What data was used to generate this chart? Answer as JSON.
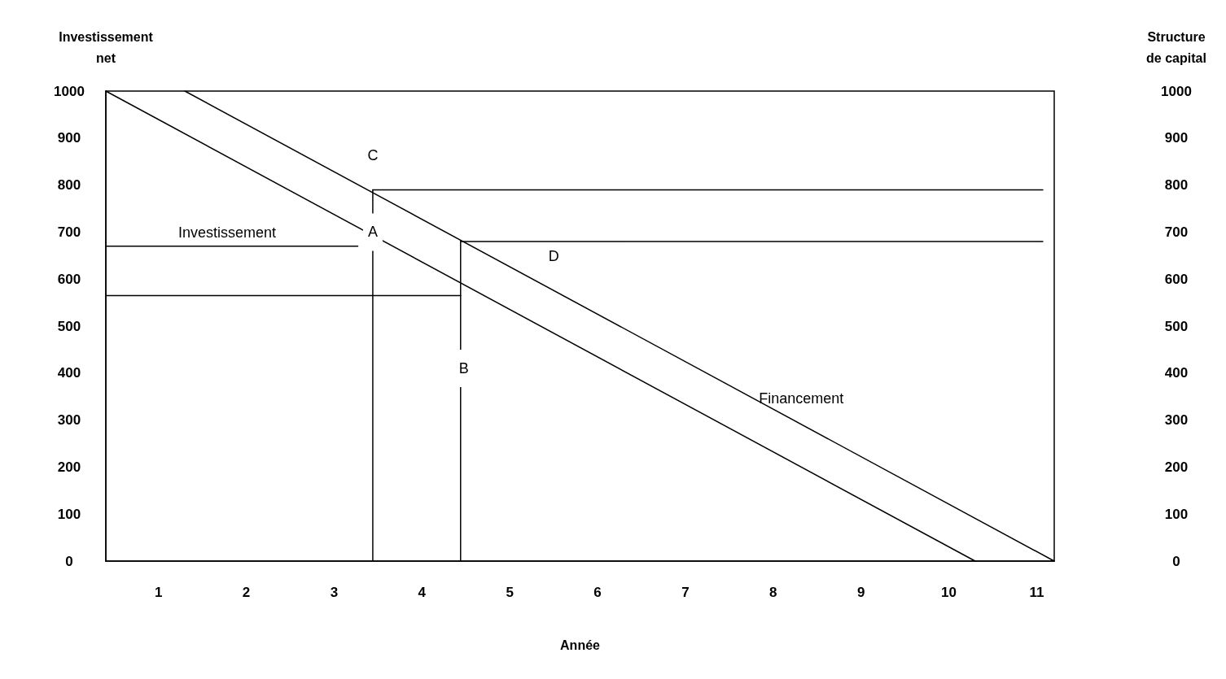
{
  "chart_data": {
    "type": "line",
    "xlabel": "Année",
    "ylabel": "Investissement net",
    "y2label": "Structure de capital",
    "xlim": [
      0.4,
      11.2
    ],
    "xticks": [
      1,
      2,
      3,
      4,
      5,
      6,
      7,
      8,
      9,
      10,
      11
    ],
    "ylim": [
      0,
      1000
    ],
    "yticks": [
      0,
      100,
      200,
      300,
      400,
      500,
      600,
      700,
      800,
      900,
      1000
    ],
    "y2lim": [
      0,
      1000
    ],
    "y2ticks": [
      0,
      100,
      200,
      300,
      400,
      500,
      600,
      700,
      800,
      900,
      1000
    ],
    "marker": "none",
    "line_style": "solid",
    "series": [
      {
        "name": "Investissement",
        "color": "#000000",
        "x": [
          0.4,
          10.3
        ],
        "values": [
          1000,
          0
        ]
      },
      {
        "name": "Financement",
        "color": "#000000",
        "x": [
          1.3,
          11.2
        ],
        "values": [
          1000,
          0
        ]
      },
      {
        "color": "#000000",
        "x": [
          0.4,
          3.27
        ],
        "values": [
          670,
          670
        ]
      },
      {
        "color": "#000000",
        "x": [
          0.4,
          4.44
        ],
        "values": [
          565,
          565
        ]
      },
      {
        "color": "#000000",
        "x": [
          3.44,
          11.07
        ],
        "values": [
          790,
          790
        ]
      },
      {
        "color": "#000000",
        "x": [
          4.44,
          11.07
        ],
        "values": [
          680,
          680
        ]
      },
      {
        "color": "#000000",
        "x": [
          3.44,
          3.44
        ],
        "values": [
          790,
          0
        ]
      },
      {
        "color": "#000000",
        "x": [
          4.44,
          4.44
        ],
        "values": [
          680,
          0
        ]
      }
    ],
    "annotations": [
      {
        "text": "C",
        "x": 3.44,
        "y": 790
      },
      {
        "text": "A",
        "x": 3.44,
        "y": 700
      },
      {
        "text": "B",
        "x": 4.44,
        "y": 410
      },
      {
        "text": "D",
        "x": 5.5,
        "y": 680
      }
    ]
  }
}
